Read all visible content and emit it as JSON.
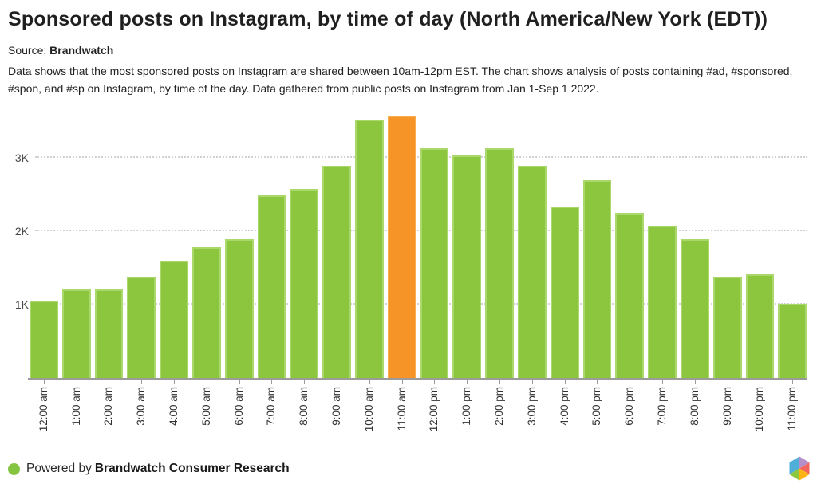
{
  "title": "Sponsored posts on Instagram, by time of day (North America/New York (EDT))",
  "source": {
    "label": "Source:",
    "name": "Brandwatch"
  },
  "description": {
    "line1": "Data shows that the most sponsored posts on Instagram are shared between 10am-12pm EST. The chart shows analysis of posts containing #ad, #sponsored,",
    "line2": "#spon, and #sp on Instagram, by time of the day. Data gathered from public posts on Instagram from Jan 1-Sep 1 2022."
  },
  "chart_data": {
    "type": "bar",
    "title": "Sponsored posts on Instagram, by time of day (North America/New York (EDT))",
    "categories": [
      "12:00 am",
      "1:00 am",
      "2:00 am",
      "3:00 am",
      "4:00 am",
      "5:00 am",
      "6:00 am",
      "7:00 am",
      "8:00 am",
      "9:00 am",
      "10:00 am",
      "11:00 am",
      "12:00 pm",
      "1:00 pm",
      "2:00 pm",
      "3:00 pm",
      "4:00 pm",
      "5:00 pm",
      "6:00 pm",
      "7:00 pm",
      "8:00 pm",
      "9:00 pm",
      "10:00 pm",
      "11:00 pm"
    ],
    "values": [
      1050,
      1210,
      1210,
      1380,
      1600,
      1780,
      1890,
      2490,
      2570,
      2890,
      3520,
      3570,
      3130,
      3030,
      3130,
      2890,
      2340,
      2700,
      2250,
      2070,
      1890,
      1380,
      1410,
      1010
    ],
    "highlight_index": 11,
    "highlight_category": "11:00 am",
    "colors": {
      "bar": "#8CC63F",
      "bar_border": "#ABD86A",
      "highlight": "#F79428",
      "highlight_border": "#FAAE50"
    },
    "yticks": {
      "labels": [
        "1K",
        "2K",
        "3K"
      ],
      "values": [
        1000,
        2000,
        3000
      ]
    },
    "ylim": [
      0,
      3640
    ],
    "grid": "horizontal-dotted",
    "xlabel": "",
    "ylabel": "",
    "legend": "none"
  },
  "footer": {
    "powered_by": "Powered by",
    "brand": "Brandwatch Consumer Research",
    "dot_color": "#84C441"
  },
  "logo": {
    "name": "brandwatch-hexagon",
    "colors": {
      "blue": "#4FAFD9",
      "purple": "#B58FC9",
      "coral": "#F2655C",
      "yellow": "#FDB515",
      "green": "#8CC63F"
    }
  }
}
